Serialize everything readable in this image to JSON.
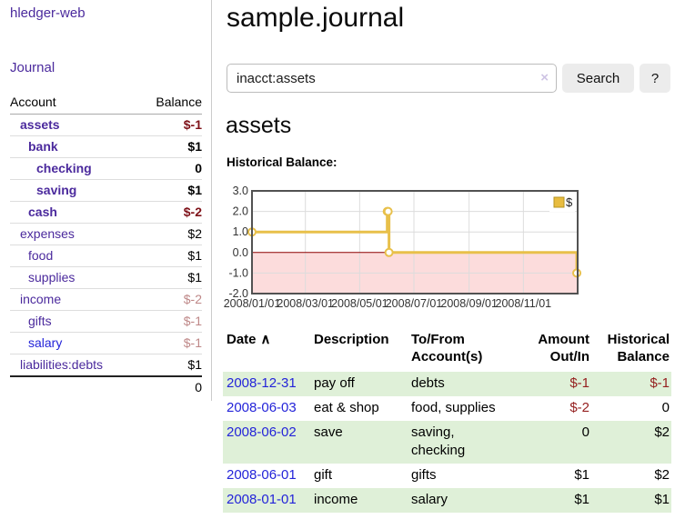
{
  "colors": {
    "link_purple": "#4b2a9d",
    "link_blue": "#2424d9",
    "negative_strong": "#7e1118",
    "negative_table": "#952020",
    "negative_faded": "#be8787",
    "row_stripe_green": "#dff0d8",
    "chart_line": "#e8c04a",
    "chart_negative_fill": "#fcdcdc",
    "chart_zero_line": "#8e0000"
  },
  "sidebar": {
    "app_title": "hledger-web",
    "nav": [
      {
        "label": "Journal"
      }
    ],
    "accounts_table": {
      "headers": {
        "account": "Account",
        "balance": "Balance"
      },
      "rows": [
        {
          "name": "assets",
          "balance": "$-1",
          "indent": 1,
          "bold": true,
          "balance_style": "neg-strong"
        },
        {
          "name": "bank",
          "balance": "$1",
          "indent": 2,
          "bold": true,
          "balance_style": ""
        },
        {
          "name": "checking",
          "balance": "0",
          "indent": 3,
          "bold": true,
          "balance_style": ""
        },
        {
          "name": "saving",
          "balance": "$1",
          "indent": 3,
          "bold": true,
          "balance_style": ""
        },
        {
          "name": "cash",
          "balance": "$-2",
          "indent": 2,
          "bold": true,
          "balance_style": "neg-strong"
        },
        {
          "name": "expenses",
          "balance": "$2",
          "indent": 1,
          "bold": false,
          "balance_style": ""
        },
        {
          "name": "food",
          "balance": "$1",
          "indent": 2,
          "bold": false,
          "balance_style": ""
        },
        {
          "name": "supplies",
          "balance": "$1",
          "indent": 2,
          "bold": false,
          "balance_style": ""
        },
        {
          "name": "income",
          "balance": "$-2",
          "indent": 1,
          "bold": false,
          "balance_style": "neg-faded"
        },
        {
          "name": "gifts",
          "balance": "$-1",
          "indent": 2,
          "bold": false,
          "balance_style": "neg-faded"
        },
        {
          "name": "salary",
          "balance": "$-1",
          "indent": 2,
          "bold": false,
          "balance_style": "neg-faded",
          "link_color": "blue"
        },
        {
          "name": "liabilities:debts",
          "balance": "$1",
          "indent": 1,
          "bold": false,
          "balance_style": ""
        }
      ],
      "total": "0"
    }
  },
  "main": {
    "title": "sample.journal",
    "search": {
      "value": "inacct:assets",
      "clear_icon": "×",
      "button_label": "Search",
      "help_label": "?"
    },
    "account_heading": "assets",
    "chart_label": "Historical Balance:"
  },
  "chart_data": {
    "type": "line",
    "title": "Historical Balance",
    "step": true,
    "series": [
      {
        "name": "$",
        "points": [
          {
            "date": "2008-01-01",
            "value": 1
          },
          {
            "date": "2008-06-01",
            "value": 2
          },
          {
            "date": "2008-06-02",
            "value": 2
          },
          {
            "date": "2008-06-03",
            "value": 0
          },
          {
            "date": "2008-12-31",
            "value": -1
          }
        ]
      }
    ],
    "x_start": "2008-01-01",
    "x_end": "2009-01-01",
    "x_ticks": [
      "2008/01/01",
      "2008/03/01",
      "2008/05/01",
      "2008/07/01",
      "2008/09/01",
      "2008/11/01"
    ],
    "y_ticks": [
      "3.0",
      "2.0",
      "1.0",
      "0.0",
      "-1.0",
      "-2.0"
    ],
    "ylim": [
      -2,
      3
    ],
    "grid": true,
    "legend": {
      "label": "$",
      "position": "top-right"
    },
    "colors": {
      "line": "#e8c04a",
      "marker_fill": "#ffffff",
      "negative_fill": "#fcdcdc",
      "zero_line": "#8e0000",
      "grid": "#dcdcdc",
      "border": "#525252",
      "legend_fill": "#e8bc3f",
      "legend_border": "#b6931f"
    }
  },
  "register": {
    "sort_icon": "∧",
    "headers": {
      "date": "Date",
      "description": "Description",
      "tofrom": "To/From Account(s)",
      "amount": "Amount Out/In",
      "balance": "Historical Balance"
    },
    "rows": [
      {
        "date": "2008-12-31",
        "description": "pay off",
        "accounts": "debts",
        "amount": "$-1",
        "balance": "$-1",
        "amount_negative": true,
        "balance_negative": true
      },
      {
        "date": "2008-06-03",
        "description": "eat & shop",
        "accounts": "food, supplies",
        "amount": "$-2",
        "balance": "0",
        "amount_negative": true,
        "balance_negative": false
      },
      {
        "date": "2008-06-02",
        "description": "save",
        "accounts": "saving, checking",
        "amount": "0",
        "balance": "$2",
        "amount_negative": false,
        "balance_negative": false
      },
      {
        "date": "2008-06-01",
        "description": "gift",
        "accounts": "gifts",
        "amount": "$1",
        "balance": "$2",
        "amount_negative": false,
        "balance_negative": false
      },
      {
        "date": "2008-01-01",
        "description": "income",
        "accounts": "salary",
        "amount": "$1",
        "balance": "$1",
        "amount_negative": false,
        "balance_negative": false
      }
    ]
  }
}
